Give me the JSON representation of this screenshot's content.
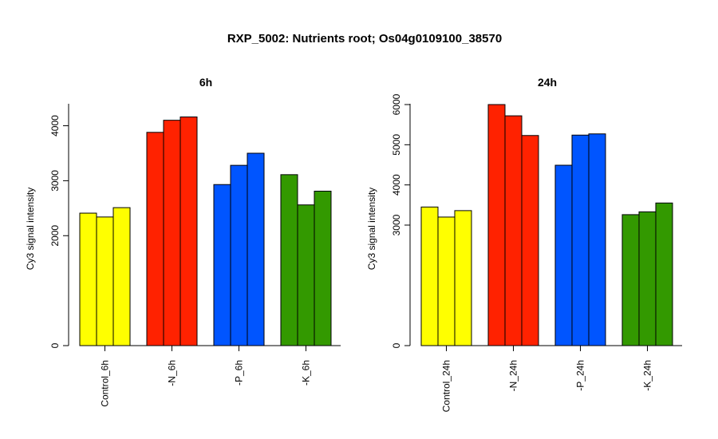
{
  "title": "RXP_5002: Nutrients root; Os04g0109100_38570",
  "chart_data": [
    {
      "type": "bar",
      "title": "6h",
      "ylabel": "Cy3 signal intensity",
      "categories": [
        "Control_6h",
        "-N_6h",
        "-P_6h",
        "-K_6h"
      ],
      "colors": [
        "#ffff00",
        "#ff2200",
        "#0055ff",
        "#339900"
      ],
      "values": [
        [
          2410,
          2340,
          2510
        ],
        [
          3880,
          4100,
          4160
        ],
        [
          2930,
          3280,
          3500
        ],
        [
          3110,
          2560,
          2810
        ]
      ],
      "ylim": [
        0,
        4400
      ],
      "yticks": [
        0,
        2000,
        3000,
        4000
      ]
    },
    {
      "type": "bar",
      "title": "24h",
      "ylabel": "Cy3 signal intensity",
      "categories": [
        "Control_24h",
        "-N_24h",
        "-P_24h",
        "-K_24h"
      ],
      "colors": [
        "#ffff00",
        "#ff2200",
        "#0055ff",
        "#339900"
      ],
      "values": [
        [
          3450,
          3200,
          3360
        ],
        [
          6000,
          5720,
          5230
        ],
        [
          4490,
          5240,
          5270
        ],
        [
          3260,
          3330,
          3550
        ]
      ],
      "ylim": [
        0,
        6020
      ],
      "yticks": [
        0,
        3000,
        4000,
        5000,
        6000
      ]
    }
  ]
}
